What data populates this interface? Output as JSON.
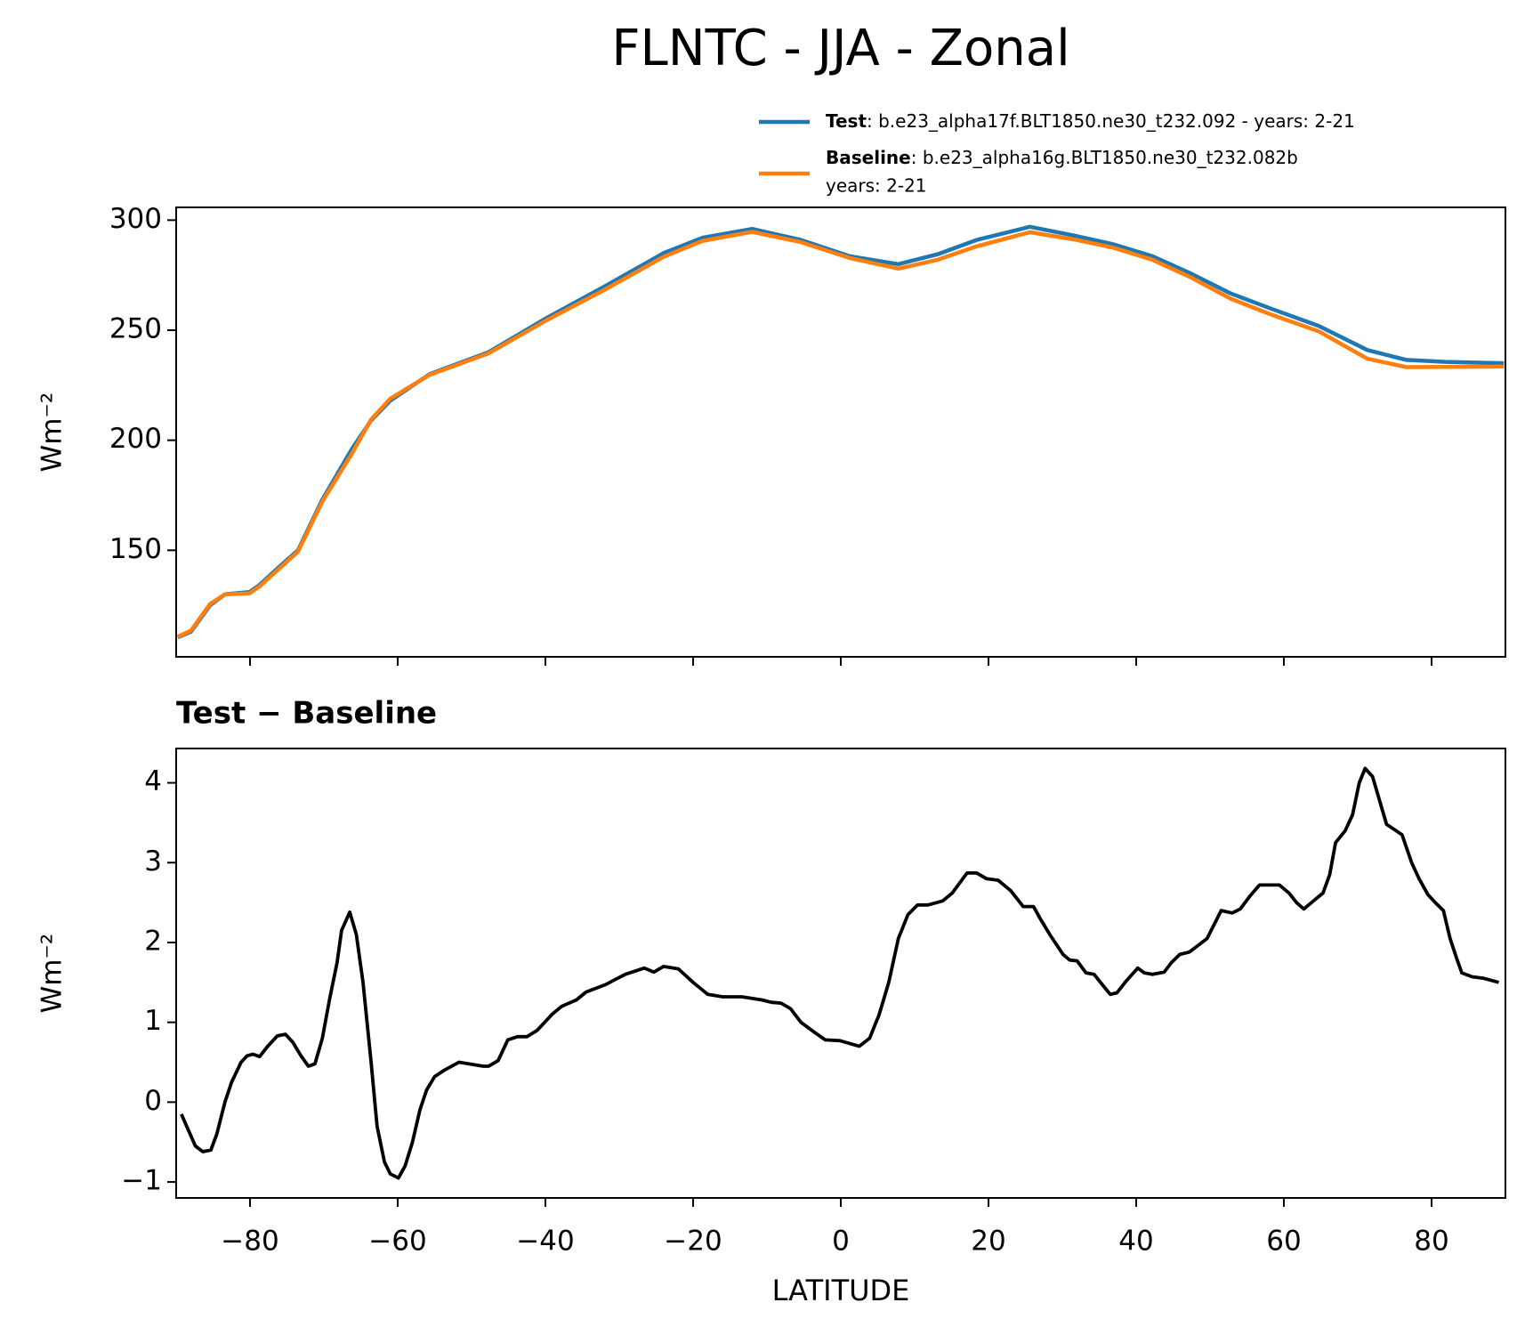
{
  "title": "FLNTC - JJA - Zonal",
  "chart_data": [
    {
      "type": "line",
      "ylabel": "Wm⁻²",
      "x": [
        -89.8,
        -88,
        -85.4,
        -83.4,
        -80.1,
        -78.8,
        -76.2,
        -73.5,
        -70.2,
        -66.2,
        -63.6,
        -61,
        -55.7,
        -47.7,
        -39.8,
        -31.9,
        -24,
        -18.7,
        -12,
        -5.4,
        1.2,
        7.8,
        13.1,
        18.4,
        25.6,
        31.6,
        36.9,
        42.2,
        47.5,
        52.8,
        58.1,
        64.7,
        71.3,
        76.6,
        81.9,
        89.8
      ],
      "series": [
        {
          "name": "Test",
          "label": ": b.e23_alpha17f.BLT1850.ne30_t232.092 - years: 2-21",
          "color": "#1f77b4",
          "values": [
            110.5,
            113,
            125,
            130,
            131,
            134,
            142,
            150,
            173,
            196,
            209,
            218,
            230,
            240,
            255.6,
            270,
            285,
            292,
            296,
            291,
            283.6,
            280,
            284.5,
            291,
            297,
            293,
            289,
            283.6,
            275.6,
            266.7,
            260,
            252,
            241,
            236.5,
            235.6,
            235
          ]
        },
        {
          "name": "Baseline",
          "label": ": b.e23_alpha16g.BLT1850.ne30_t232.082b",
          "label2": "years: 2-21",
          "color": "#ff7f0e",
          "values": [
            110.7,
            113.5,
            125.6,
            130,
            130.4,
            133.4,
            141.2,
            149.4,
            172.2,
            193.9,
            209.4,
            218.9,
            229.7,
            239.5,
            254.6,
            268.5,
            283.3,
            290.6,
            294.7,
            290,
            282.8,
            278,
            282,
            288.1,
            294.5,
            291.2,
            287.5,
            282,
            273.8,
            264.3,
            257.3,
            249.5,
            237,
            233.2,
            233.3,
            233.5
          ]
        }
      ],
      "xlim": [
        -90,
        90
      ],
      "ylim": [
        101.6,
        305.8
      ],
      "xticks": [
        -80,
        -60,
        -40,
        -20,
        0,
        20,
        40,
        60,
        80
      ],
      "yticks": [
        150,
        200,
        250,
        300
      ]
    },
    {
      "type": "line",
      "title": "Test − Baseline",
      "xlabel": "LATITUDE",
      "ylabel": "Wm⁻²",
      "x": [
        -89.3,
        -87.4,
        -86.4,
        -85.3,
        -84.5,
        -83.4,
        -82.5,
        -81.2,
        -80.4,
        -79.6,
        -78.7,
        -77.6,
        -76.3,
        -75.2,
        -74.2,
        -73.1,
        -72.1,
        -71.2,
        -70.2,
        -69.2,
        -68.2,
        -67.6,
        -66.5,
        -65.6,
        -64.7,
        -63.6,
        -62.8,
        -61.8,
        -61,
        -59.9,
        -59,
        -58,
        -57,
        -56.1,
        -55,
        -53.7,
        -51.7,
        -49.7,
        -48.4,
        -47.7,
        -46.4,
        -45.1,
        -43.8,
        -42.5,
        -41.1,
        -39.1,
        -37.8,
        -35.8,
        -34.5,
        -31.9,
        -29.2,
        -26.6,
        -25.3,
        -24,
        -22,
        -20,
        -18,
        -16,
        -13.4,
        -10.7,
        -9.4,
        -8.1,
        -6.8,
        -5.4,
        -3.5,
        -2.1,
        -0.1,
        2.5,
        3.9,
        5.2,
        6.5,
        7.8,
        9.1,
        10.4,
        11.8,
        13.8,
        15.1,
        17.1,
        18.4,
        19.7,
        21.3,
        23,
        24.7,
        26.1,
        27,
        28.3,
        30.1,
        31,
        32,
        33.2,
        34.3,
        35.6,
        36.5,
        37.4,
        38.5,
        40.2,
        41.1,
        42.2,
        43.8,
        44.8,
        45.9,
        47.2,
        49.6,
        51.5,
        53,
        54.1,
        55.4,
        56.7,
        58,
        59.4,
        60.7,
        61.7,
        62.7,
        64,
        65.3,
        66.2,
        67,
        68.3,
        69.3,
        70.2,
        71,
        72,
        73.9,
        75.2,
        76,
        77.3,
        78.3,
        79.5,
        80.5,
        81.6,
        82.5,
        83.4,
        84.1,
        85.5,
        87.1,
        89.1
      ],
      "color": "#000000",
      "values": [
        -0.15,
        -0.55,
        -0.62,
        -0.6,
        -0.4,
        0,
        0.25,
        0.5,
        0.58,
        0.6,
        0.57,
        0.7,
        0.83,
        0.85,
        0.75,
        0.58,
        0.45,
        0.48,
        0.8,
        1.3,
        1.75,
        2.15,
        2.38,
        2.1,
        1.5,
        0.5,
        -0.3,
        -0.75,
        -0.9,
        -0.95,
        -0.8,
        -0.5,
        -0.1,
        0.15,
        0.32,
        0.4,
        0.5,
        0.47,
        0.45,
        0.45,
        0.52,
        0.78,
        0.82,
        0.82,
        0.9,
        1.1,
        1.2,
        1.28,
        1.38,
        1.47,
        1.6,
        1.68,
        1.63,
        1.7,
        1.67,
        1.5,
        1.35,
        1.32,
        1.32,
        1.28,
        1.25,
        1.24,
        1.17,
        1,
        0.87,
        0.78,
        0.77,
        0.7,
        0.8,
        1.1,
        1.5,
        2.05,
        2.35,
        2.47,
        2.47,
        2.52,
        2.62,
        2.87,
        2.87,
        2.8,
        2.78,
        2.65,
        2.45,
        2.45,
        2.3,
        2.1,
        1.85,
        1.78,
        1.77,
        1.62,
        1.6,
        1.45,
        1.35,
        1.37,
        1.5,
        1.68,
        1.62,
        1.6,
        1.63,
        1.75,
        1.85,
        1.88,
        2.05,
        2.4,
        2.37,
        2.42,
        2.58,
        2.72,
        2.72,
        2.72,
        2.62,
        2.5,
        2.42,
        2.52,
        2.62,
        2.85,
        3.25,
        3.4,
        3.6,
        4,
        4.18,
        4.08,
        3.48,
        3.4,
        3.35,
        3,
        2.8,
        2.6,
        2.5,
        2.4,
        2.05,
        1.8,
        1.62,
        1.57,
        1.55,
        1.5
      ],
      "xlim": [
        -90,
        90
      ],
      "ylim": [
        -1.2,
        4.43
      ],
      "xticks": [
        {
          "value": -80,
          "label": "−80"
        },
        {
          "value": -60,
          "label": "−60"
        },
        {
          "value": -40,
          "label": "−40"
        },
        {
          "value": -20,
          "label": "−20"
        },
        0,
        20,
        40,
        60,
        80
      ],
      "yticks": [
        {
          "value": -1,
          "label": "−1"
        },
        0,
        1,
        2,
        3,
        4
      ]
    }
  ]
}
